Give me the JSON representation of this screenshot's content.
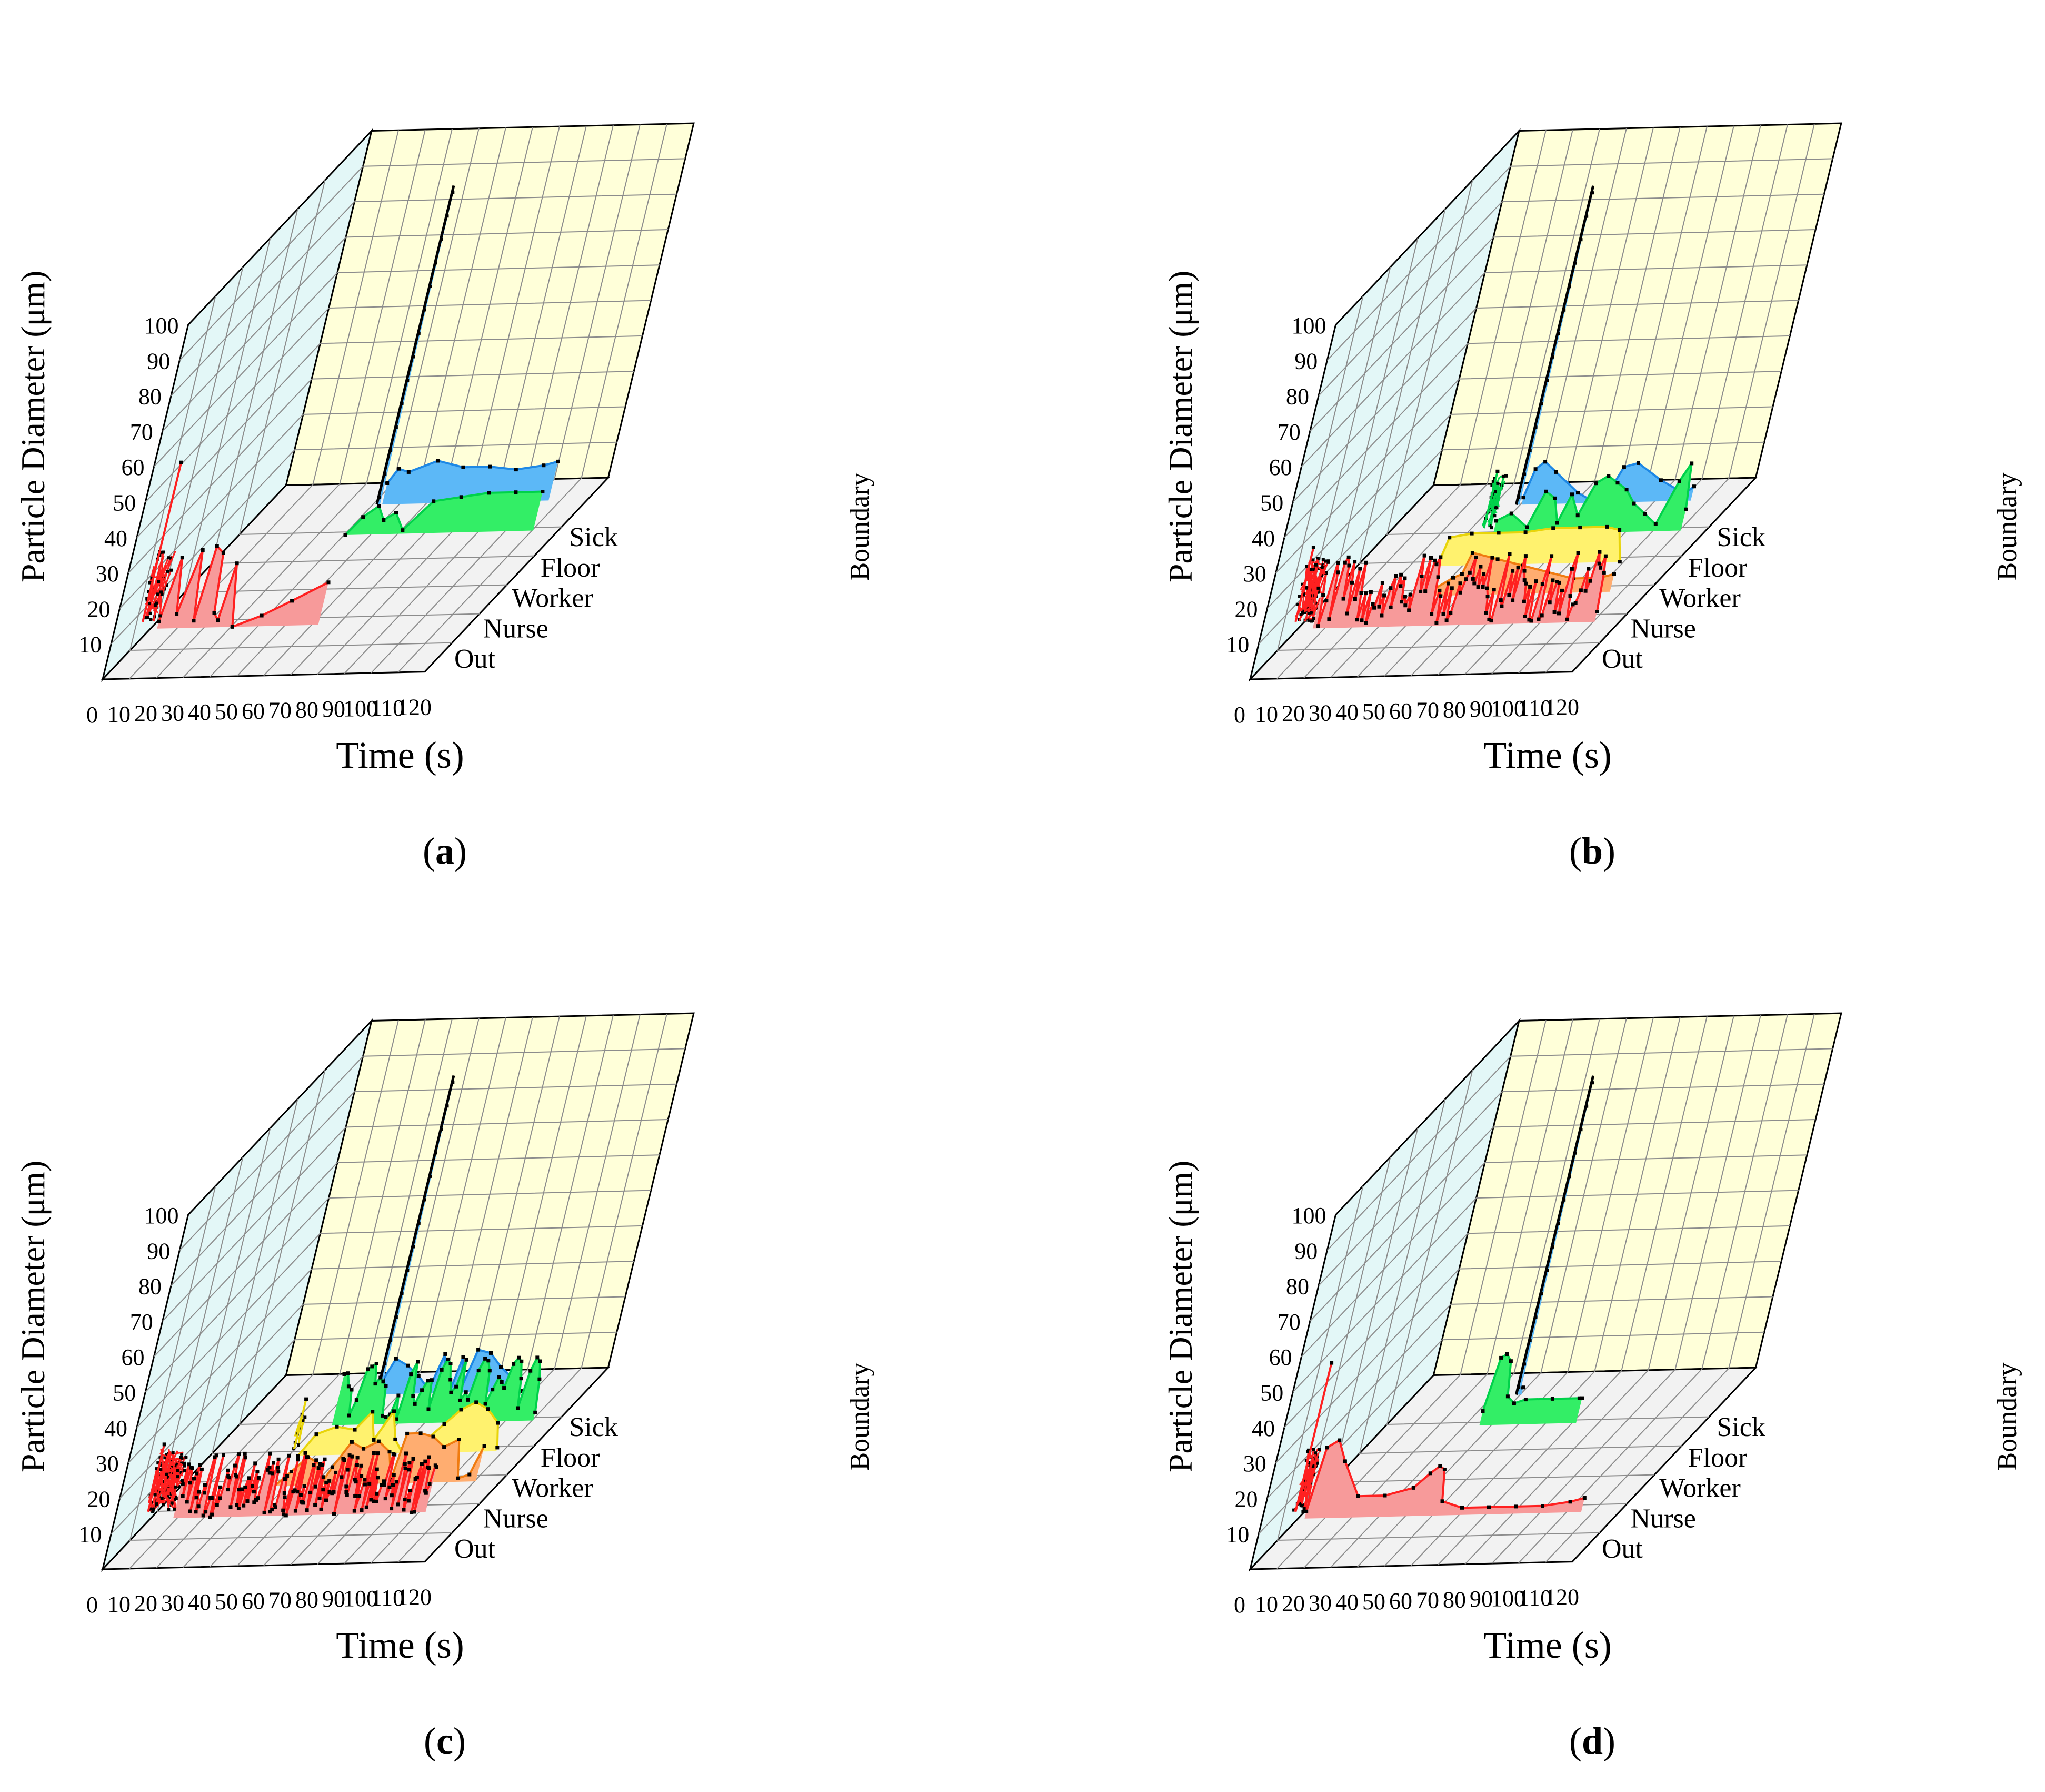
{
  "figure": {
    "background": "#ffffff"
  },
  "chart_data": [
    {
      "type": "area",
      "panel": "a",
      "caption_open": "(",
      "caption_letter": "a",
      "caption_close": ")",
      "xlabel": "Time (s)",
      "ylabel": "Particle Diameter (μm)",
      "zlabel": "Boundary",
      "xticks": [
        "0",
        "10",
        "20",
        "30",
        "40",
        "50",
        "60",
        "70",
        "80",
        "90",
        "100",
        "110",
        "120"
      ],
      "yticks": [
        "10",
        "20",
        "30",
        "40",
        "50",
        "60",
        "70",
        "80",
        "90",
        "100"
      ],
      "boundaries": [
        "Out",
        "Nurse",
        "Worker",
        "Floor",
        "Sick"
      ],
      "xlim": [
        0,
        120
      ],
      "ylim": [
        0,
        100
      ],
      "series": [
        {
          "name": "Out",
          "color": "#ff2020",
          "fill": "#f79a9a",
          "noise": {
            "x": [
              5,
              12
            ],
            "y": [
              12,
              32
            ],
            "density": 40,
            "peak": 57
          },
          "x": [
            12,
            15,
            18,
            22,
            25,
            27,
            30,
            32,
            34,
            36,
            40,
            50,
            60,
            72
          ],
          "y": [
            12,
            30,
            14,
            32,
            12,
            33,
            31,
            14,
            12,
            28,
            10,
            13,
            17,
            22
          ]
        },
        {
          "name": "Floor",
          "color": "#00d24a",
          "fill": "#33ee66",
          "x": [
            50,
            55,
            60,
            63,
            67,
            71,
            80,
            90,
            100,
            110,
            120
          ],
          "y": [
            10,
            15,
            18,
            14,
            16,
            11,
            19,
            20,
            21,
            21,
            21
          ]
        },
        {
          "name": "Sick",
          "color": "#1e88e5",
          "fill": "#5cb8f7",
          "spike": {
            "x": 51,
            "y": 100
          },
          "x": [
            53,
            56,
            60,
            70,
            80,
            90,
            100,
            110,
            115
          ],
          "y": [
            16,
            20,
            19,
            22,
            20,
            20,
            19,
            20,
            21
          ]
        }
      ]
    },
    {
      "type": "area",
      "panel": "b",
      "caption_open": "(",
      "caption_letter": "b",
      "caption_close": ")",
      "xlabel": "Time (s)",
      "ylabel": "Particle Diameter (μm)",
      "zlabel": "Boundary",
      "xticks": [
        "0",
        "10",
        "20",
        "30",
        "40",
        "50",
        "60",
        "70",
        "80",
        "90",
        "100",
        "110",
        "120"
      ],
      "yticks": [
        "10",
        "20",
        "30",
        "40",
        "50",
        "60",
        "70",
        "80",
        "90",
        "100"
      ],
      "boundaries": [
        "Out",
        "Nurse",
        "Worker",
        "Floor",
        "Sick"
      ],
      "xlim": [
        0,
        120
      ],
      "ylim": [
        0,
        100
      ],
      "series": [
        {
          "name": "Out",
          "color": "#ff2020",
          "fill": "#f79a9a",
          "noise": {
            "x": [
              7,
              15
            ],
            "y": [
              12,
              30
            ],
            "density": 60,
            "peak": 33
          },
          "jagged": {
            "x": [
              15,
              120
            ],
            "y": [
              10,
              30
            ],
            "count": 120
          }
        },
        {
          "name": "Nurse",
          "color": "#f07b10",
          "fill": "#ffad70",
          "x": [
            45,
            55,
            58,
            60,
            70,
            80,
            90,
            100,
            110,
            115
          ],
          "y": [
            10,
            15,
            16,
            22,
            20,
            18,
            16,
            14,
            14,
            15
          ]
        },
        {
          "name": "Worker",
          "color": "#e8d40a",
          "fill": "#fff26e",
          "x": [
            40,
            42,
            50,
            60,
            70,
            80,
            90,
            100,
            105,
            108
          ],
          "y": [
            10,
            18,
            19,
            19,
            19,
            20,
            20,
            20,
            19,
            10
          ]
        },
        {
          "name": "Floor",
          "color": "#00d24a",
          "fill": "#33ee66",
          "noise": {
            "x": [
              45,
              50
            ],
            "y": [
              12,
              27
            ],
            "density": 30,
            "peak": 28
          },
          "x": [
            50,
            55,
            62,
            66,
            70,
            73,
            76,
            80,
            84,
            88,
            92,
            96,
            100,
            105,
            110,
            115,
            118,
            120
          ],
          "y": [
            14,
            16,
            12,
            22,
            20,
            13,
            21,
            15,
            24,
            26,
            24,
            22,
            18,
            15,
            12,
            24,
            29,
            16
          ]
        },
        {
          "name": "Sick",
          "color": "#1e88e5",
          "fill": "#5cb8f7",
          "spike": {
            "x": 48,
            "y": 100
          },
          "x": [
            50,
            52,
            55,
            60,
            70,
            75,
            80,
            82,
            85,
            90,
            100,
            110,
            113
          ],
          "y": [
            12,
            20,
            22,
            19,
            13,
            11,
            12,
            14,
            20,
            21,
            16,
            12,
            14
          ]
        }
      ]
    },
    {
      "type": "area",
      "panel": "c",
      "caption_open": "(",
      "caption_letter": "c",
      "caption_close": ")",
      "xlabel": "Time (s)",
      "ylabel": "Particle Diameter (μm)",
      "zlabel": "Boundary",
      "xticks": [
        "0",
        "10",
        "20",
        "30",
        "40",
        "50",
        "60",
        "70",
        "80",
        "90",
        "100",
        "110",
        "120"
      ],
      "yticks": [
        "10",
        "20",
        "30",
        "40",
        "50",
        "60",
        "70",
        "80",
        "90",
        "100"
      ],
      "boundaries": [
        "Out",
        "Nurse",
        "Worker",
        "Floor",
        "Sick"
      ],
      "xlim": [
        0,
        120
      ],
      "ylim": [
        0,
        100
      ],
      "series": [
        {
          "name": "Out",
          "color": "#ff2020",
          "fill": "#f79a9a",
          "noise": {
            "x": [
              7,
              18
            ],
            "y": [
              12,
              30
            ],
            "density": 80,
            "peak": 31
          },
          "jagged": {
            "x": [
              18,
              112
            ],
            "y": [
              10,
              28
            ],
            "count": 180
          }
        },
        {
          "name": "Nurse",
          "color": "#f07b10",
          "fill": "#ffad70",
          "x": [
            45,
            50,
            55,
            60,
            62,
            65,
            70,
            75,
            80,
            85,
            88,
            90,
            95,
            100,
            105,
            110,
            113,
            117,
            120
          ],
          "y": [
            10,
            14,
            18,
            16,
            10,
            15,
            22,
            20,
            22,
            19,
            11,
            24,
            24,
            23,
            20,
            22,
            11,
            12,
            20
          ]
        },
        {
          "name": "Worker",
          "color": "#e8d40a",
          "fill": "#fff26e",
          "noise": {
            "x": [
              40,
              43
            ],
            "y": [
              12,
              25
            ],
            "density": 8,
            "peak": 26
          },
          "x": [
            43,
            48,
            55,
            62,
            67,
            70,
            75,
            78,
            82,
            85,
            90,
            95,
            100,
            105,
            110,
            115,
            117
          ],
          "y": [
            10,
            16,
            18,
            17,
            22,
            14,
            22,
            14,
            10,
            12,
            14,
            18,
            22,
            24,
            22,
            18,
            11
          ]
        },
        {
          "name": "Floor",
          "color": "#00d24a",
          "fill": "#33ee66",
          "jagged": {
            "x": [
              45,
              120
            ],
            "y": [
              11,
              28
            ],
            "count": 55
          }
        },
        {
          "name": "Sick",
          "color": "#1e88e5",
          "fill": "#5cb8f7",
          "spike": {
            "x": 51,
            "y": 100
          },
          "x": [
            52,
            55,
            60,
            65,
            70,
            73,
            75,
            78,
            80,
            82,
            85,
            90,
            95,
            100,
            105
          ],
          "y": [
            14,
            20,
            18,
            15,
            11,
            21,
            14,
            10,
            20,
            11,
            22,
            21,
            17,
            14,
            10
          ]
        }
      ]
    },
    {
      "type": "area",
      "panel": "d",
      "caption_open": "(",
      "caption_letter": "d",
      "caption_close": ")",
      "xlabel": "Time (s)",
      "ylabel": "Particle Diameter (μm)",
      "zlabel": "Boundary",
      "xticks": [
        "0",
        "10",
        "20",
        "30",
        "40",
        "50",
        "60",
        "70",
        "80",
        "90",
        "100",
        "110",
        "120"
      ],
      "yticks": [
        "10",
        "20",
        "30",
        "40",
        "50",
        "60",
        "70",
        "80",
        "90",
        "100"
      ],
      "boundaries": [
        "Out",
        "Nurse",
        "Worker",
        "Floor",
        "Sick"
      ],
      "xlim": [
        0,
        120
      ],
      "ylim": [
        0,
        100
      ],
      "series": [
        {
          "name": "Out",
          "color": "#ff2020",
          "fill": "#f79a9a",
          "noise": {
            "x": [
              7,
              12
            ],
            "y": [
              12,
              30
            ],
            "density": 40,
            "peak": 54
          },
          "x": [
            12,
            14,
            18,
            22,
            30,
            40,
            50,
            55,
            58,
            60,
            62,
            70,
            80,
            90,
            100,
            110,
            115
          ],
          "y": [
            12,
            30,
            32,
            26,
            16,
            16,
            18,
            22,
            24,
            23,
            14,
            12,
            12,
            12,
            12,
            13,
            14
          ]
        },
        {
          "name": "Floor",
          "color": "#00d24a",
          "fill": "#33ee66",
          "x": [
            45,
            47,
            49,
            51,
            53,
            56,
            60,
            70,
            80,
            81
          ],
          "y": [
            14,
            29,
            30,
            28,
            18,
            16,
            17,
            17,
            17,
            17
          ]
        },
        {
          "name": "Sick",
          "color": "#1e88e5",
          "fill": "#5cb8f7",
          "spike": {
            "x": 48,
            "y": 100
          },
          "x": [
            49,
            50
          ],
          "y": [
            12,
            12
          ]
        }
      ]
    }
  ]
}
